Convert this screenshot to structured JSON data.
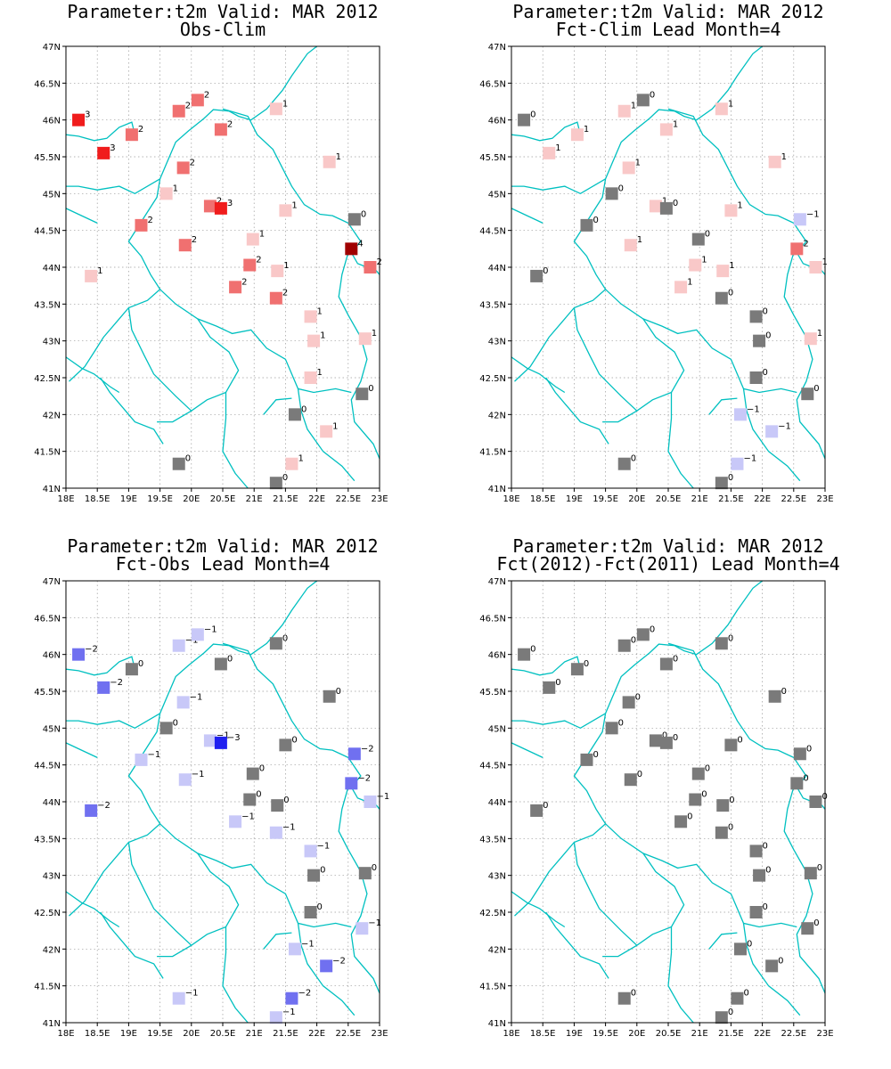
{
  "panels": [
    {
      "id": "obs-clim",
      "title1": "Parameter:t2m Valid: MAR 2012",
      "title2": "Obs-Clim"
    },
    {
      "id": "fct-clim",
      "title1": "Parameter:t2m Valid: MAR 2012",
      "title2": "Fct-Clim Lead Month=4"
    },
    {
      "id": "fct-obs",
      "title1": "Parameter:t2m Valid: MAR 2012",
      "title2": "Fct-Obs Lead Month=4"
    },
    {
      "id": "fct-fct",
      "title1": "Parameter:t2m Valid: MAR 2012",
      "title2": "Fct(2012)-Fct(2011) Lead Month=4"
    }
  ],
  "axes": {
    "lon_ticks": [
      18,
      18.5,
      19,
      19.5,
      20,
      20.5,
      21,
      21.5,
      22,
      22.5,
      23
    ],
    "lon_labels": [
      "18E",
      "18.5E",
      "19E",
      "19.5E",
      "20E",
      "20.5E",
      "21E",
      "21.5E",
      "22E",
      "22.5E",
      "23E"
    ],
    "lat_ticks": [
      41,
      41.5,
      42,
      42.5,
      43,
      43.5,
      44,
      44.5,
      45,
      45.5,
      46,
      46.5,
      47
    ],
    "lat_labels": [
      "41N",
      "41.5N",
      "42N",
      "42.5N",
      "43N",
      "43.5N",
      "44N",
      "44.5N",
      "45N",
      "45.5N",
      "46N",
      "46.5N",
      "47N"
    ],
    "lon_range": [
      18,
      23
    ],
    "lat_range": [
      41,
      47
    ]
  },
  "colors": {
    "positive": {
      "1": "#f9c8c8",
      "2": "#f07070",
      "3": "#f01c1c",
      "4": "#a00000"
    },
    "negative": {
      "1": "#c8c8f8",
      "2": "#7070f0",
      "3": "#2020f0"
    },
    "zero": "#7a7a7a",
    "borders": "#00c0c0"
  },
  "stations": [
    {
      "lon": 18.2,
      "lat": 46.0,
      "v": [
        3,
        0,
        -2,
        0
      ]
    },
    {
      "lon": 18.6,
      "lat": 45.55,
      "v": [
        3,
        1,
        -2,
        0
      ]
    },
    {
      "lon": 19.05,
      "lat": 45.8,
      "v": [
        2,
        1,
        0,
        0
      ]
    },
    {
      "lon": 19.8,
      "lat": 46.12,
      "v": [
        2,
        1,
        -1,
        0
      ]
    },
    {
      "lon": 20.1,
      "lat": 46.27,
      "v": [
        2,
        0,
        -1,
        0
      ]
    },
    {
      "lon": 21.35,
      "lat": 46.15,
      "v": [
        1,
        1,
        0,
        0
      ]
    },
    {
      "lon": 20.47,
      "lat": 45.87,
      "v": [
        2,
        1,
        0,
        0
      ]
    },
    {
      "lon": 19.87,
      "lat": 45.35,
      "v": [
        2,
        1,
        -1,
        0
      ]
    },
    {
      "lon": 22.2,
      "lat": 45.43,
      "v": [
        1,
        1,
        0,
        0
      ]
    },
    {
      "lon": 19.6,
      "lat": 45.0,
      "v": [
        1,
        0,
        0,
        0
      ]
    },
    {
      "lon": 20.3,
      "lat": 44.83,
      "v": [
        2,
        1,
        -1,
        0
      ]
    },
    {
      "lon": 20.47,
      "lat": 44.8,
      "v": [
        3,
        0,
        -3,
        0
      ]
    },
    {
      "lon": 21.5,
      "lat": 44.77,
      "v": [
        1,
        1,
        0,
        0
      ]
    },
    {
      "lon": 22.6,
      "lat": 44.65,
      "v": [
        0,
        -1,
        -2,
        0
      ]
    },
    {
      "lon": 19.2,
      "lat": 44.57,
      "v": [
        2,
        0,
        -1,
        0
      ]
    },
    {
      "lon": 19.9,
      "lat": 44.3,
      "v": [
        2,
        1,
        -1,
        0
      ]
    },
    {
      "lon": 20.98,
      "lat": 44.38,
      "v": [
        1,
        0,
        0,
        0
      ]
    },
    {
      "lon": 22.55,
      "lat": 44.25,
      "v": [
        4,
        2,
        -2,
        0
      ]
    },
    {
      "lon": 20.93,
      "lat": 44.03,
      "v": [
        2,
        1,
        0,
        0
      ]
    },
    {
      "lon": 22.85,
      "lat": 44.0,
      "v": [
        2,
        1,
        -1,
        0
      ]
    },
    {
      "lon": 18.4,
      "lat": 43.88,
      "v": [
        1,
        0,
        -2,
        0
      ]
    },
    {
      "lon": 21.37,
      "lat": 43.95,
      "v": [
        1,
        1,
        0,
        0
      ]
    },
    {
      "lon": 20.7,
      "lat": 43.73,
      "v": [
        2,
        1,
        -1,
        0
      ]
    },
    {
      "lon": 21.35,
      "lat": 43.58,
      "v": [
        2,
        0,
        -1,
        0
      ]
    },
    {
      "lon": 21.9,
      "lat": 43.33,
      "v": [
        1,
        0,
        -1,
        0
      ]
    },
    {
      "lon": 21.95,
      "lat": 43.0,
      "v": [
        1,
        0,
        0,
        0
      ]
    },
    {
      "lon": 22.77,
      "lat": 43.03,
      "v": [
        1,
        1,
        0,
        0
      ]
    },
    {
      "lon": 21.9,
      "lat": 42.5,
      "v": [
        1,
        0,
        0,
        0
      ]
    },
    {
      "lon": 22.72,
      "lat": 42.28,
      "v": [
        0,
        0,
        -1,
        0
      ]
    },
    {
      "lon": 21.65,
      "lat": 42.0,
      "v": [
        0,
        -1,
        -1,
        0
      ]
    },
    {
      "lon": 22.15,
      "lat": 41.77,
      "v": [
        1,
        -1,
        -2,
        0
      ]
    },
    {
      "lon": 19.8,
      "lat": 41.33,
      "v": [
        0,
        0,
        -1,
        0
      ]
    },
    {
      "lon": 21.6,
      "lat": 41.33,
      "v": [
        1,
        -1,
        -2,
        0
      ]
    },
    {
      "lon": 21.35,
      "lat": 41.07,
      "v": [
        0,
        0,
        -1,
        0
      ]
    }
  ]
}
